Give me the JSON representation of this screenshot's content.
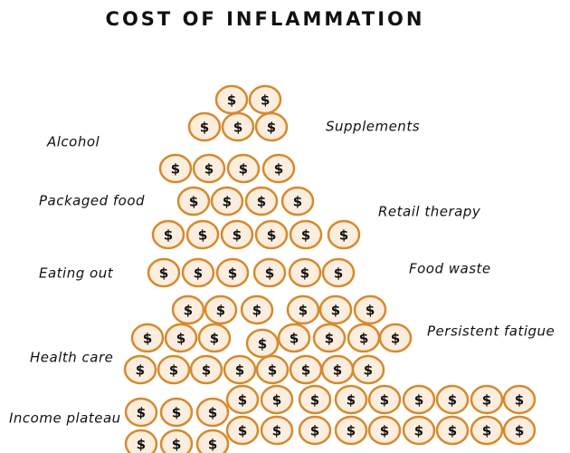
{
  "header": {
    "title": "COST OF INFLAMMATION"
  },
  "coin_symbol": "$",
  "labels": [
    "Alcohol",
    "Supplements",
    "Packaged food",
    "Retail therapy",
    "Eating out",
    "Food waste",
    "Persistent fatigue",
    "Health care",
    "Income plateau"
  ]
}
